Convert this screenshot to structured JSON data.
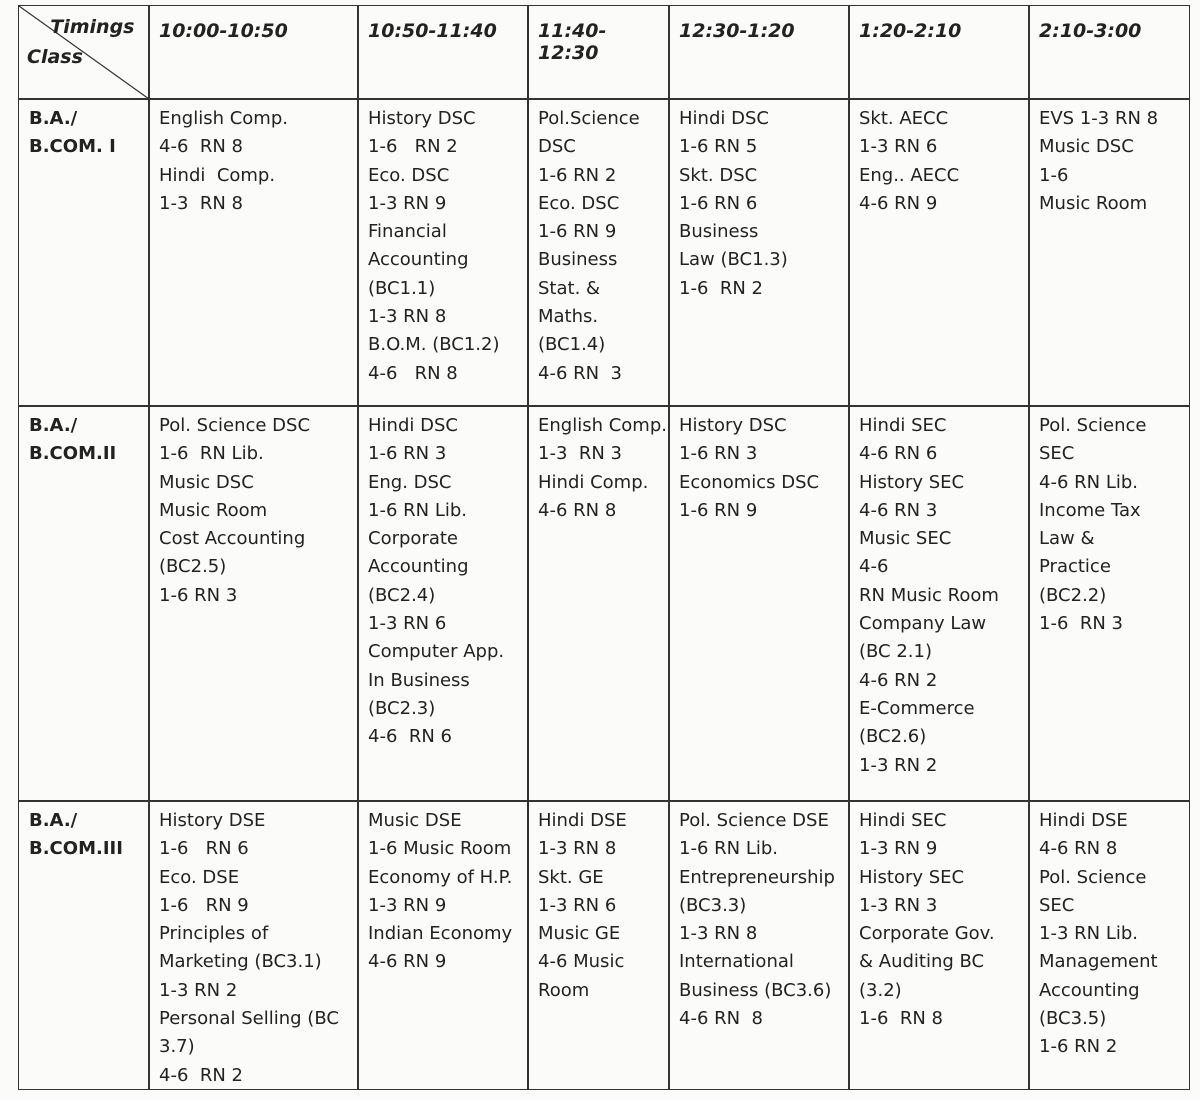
{
  "table": {
    "corner": {
      "top": "Timings",
      "bottom": "Class"
    },
    "columns": [
      "10:00-10:50",
      "10:50-11:40",
      "11:40-12:30",
      "12:30-1:20",
      "1:20-2:10",
      "2:10-3:00"
    ],
    "rows": [
      {
        "class_lines": [
          "B.A./",
          "B.COM. I"
        ],
        "cells": [
          [
            "English Comp.",
            "4-6  RN 8",
            "Hindi  Comp.",
            "1-3  RN 8"
          ],
          [
            "History DSC",
            "1-6   RN 2",
            "Eco. DSC",
            "1-3 RN 9",
            "Financial",
            "Accounting",
            "(BC1.1)",
            "1-3 RN 8",
            "B.O.M. (BC1.2)",
            "4-6   RN 8"
          ],
          [
            "Pol.Science",
            "DSC",
            "1-6 RN 2",
            "Eco. DSC",
            "1-6 RN 9",
            "Business",
            "Stat. &",
            "Maths.",
            "(BC1.4)",
            "4-6 RN  3"
          ],
          [
            "Hindi DSC",
            "1-6 RN 5",
            "Skt. DSC",
            "1-6 RN 6",
            "Business",
            "Law (BC1.3)",
            "1-6  RN 2"
          ],
          [
            "Skt. AECC",
            "1-3 RN 6",
            "Eng.. AECC",
            "4-6 RN 9"
          ],
          [
            "EVS 1-3 RN 8",
            "Music DSC",
            "1-6",
            "Music Room"
          ]
        ]
      },
      {
        "class_lines": [
          "B.A./",
          "B.COM.II"
        ],
        "cells": [
          [
            "Pol. Science DSC",
            "1-6  RN Lib.",
            "Music DSC",
            "Music Room",
            "Cost Accounting",
            "(BC2.5)",
            "1-6 RN 3"
          ],
          [
            "Hindi DSC",
            "1-6 RN 3",
            "Eng. DSC",
            "1-6 RN Lib.",
            "Corporate",
            "Accounting",
            "(BC2.4)",
            "1-3 RN 6",
            "Computer App.",
            "In Business",
            "(BC2.3)",
            "4-6  RN 6"
          ],
          [
            "English Comp.",
            "1-3  RN 3",
            "Hindi Comp.",
            "4-6 RN 8"
          ],
          [
            "History DSC",
            "1-6 RN 3",
            "Economics DSC",
            "1-6 RN 9"
          ],
          [
            "Hindi SEC",
            "4-6 RN 6",
            "History SEC",
            "4-6 RN 3",
            "Music SEC",
            "4-6",
            "RN Music Room",
            "Company Law",
            "(BC 2.1)",
            "4-6 RN 2",
            "E-Commerce",
            "(BC2.6)",
            "1-3 RN 2"
          ],
          [
            "Pol. Science",
            "SEC",
            "4-6 RN Lib.",
            "Income Tax",
            "Law &",
            "Practice",
            "(BC2.2)",
            "1-6  RN 3"
          ]
        ]
      },
      {
        "class_lines": [
          "B.A./",
          "B.COM.III"
        ],
        "cells": [
          [
            "History DSE",
            "1-6   RN 6",
            "Eco. DSE",
            "1-6   RN 9",
            "Principles of",
            "Marketing (BC3.1)",
            "1-3 RN 2",
            "Personal Selling (BC",
            "3.7)",
            "4-6  RN 2"
          ],
          [
            "Music DSE",
            "1-6 Music Room",
            "Economy of H.P.",
            "1-3 RN 9",
            "Indian Economy",
            "4-6 RN 9"
          ],
          [
            "Hindi DSE",
            "1-3 RN 8",
            "Skt. GE",
            "1-3 RN 6",
            "Music GE",
            "4-6 Music",
            "Room"
          ],
          [
            "Pol. Science DSE",
            "1-6 RN Lib.",
            "Entrepreneurship",
            "(BC3.3)",
            "1-3 RN 8",
            "International",
            "Business (BC3.6)",
            "4-6 RN  8"
          ],
          [
            "Hindi SEC",
            "1-3 RN 9",
            "History SEC",
            "1-3 RN 3",
            "Corporate Gov.",
            "& Auditing BC",
            "(3.2)",
            "1-6  RN 8"
          ],
          [
            "Hindi DSE",
            "4-6 RN 8",
            "Pol. Science",
            "SEC",
            "1-3 RN Lib.",
            "Management",
            "Accounting",
            "(BC3.5)",
            "1-6 RN 2"
          ]
        ]
      }
    ]
  }
}
